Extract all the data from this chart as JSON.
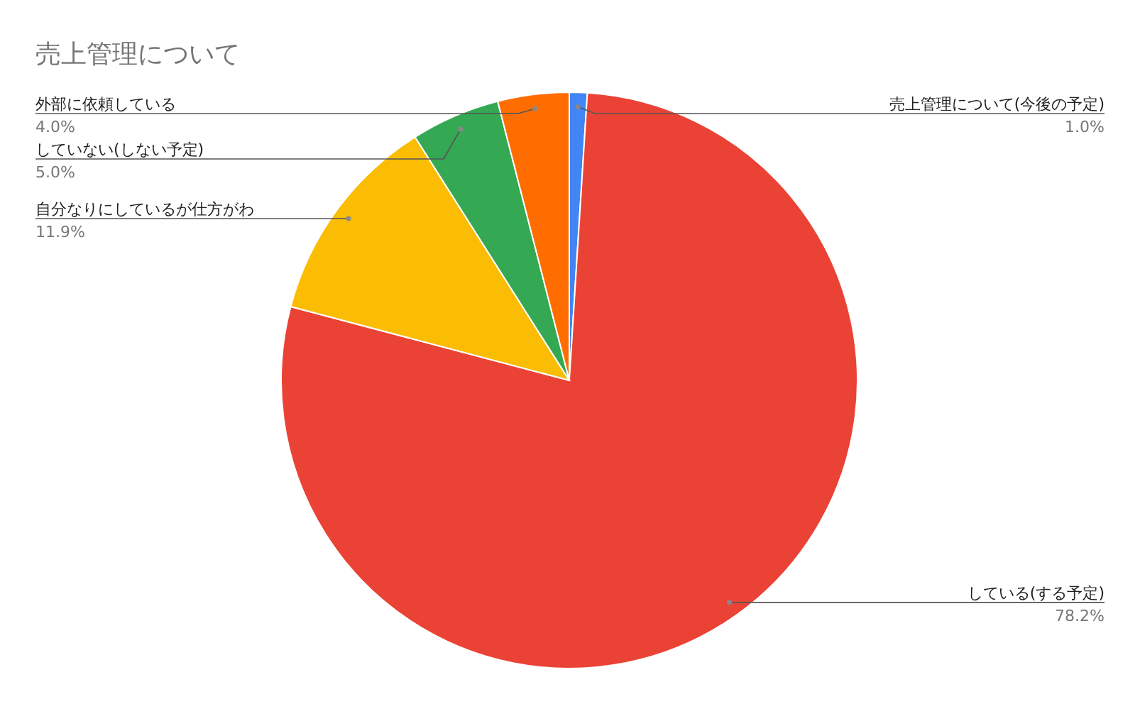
{
  "chart_data": {
    "type": "pie",
    "title": "売上管理について",
    "categories": [
      "売上管理について(今後の予定)",
      "している(する予定)",
      "自分なりにしているが仕方がわ",
      "していない(しない予定)",
      "外部に依頼している"
    ],
    "values": [
      1.0,
      78.2,
      11.9,
      5.0,
      4.0
    ],
    "value_labels": [
      "1.0%",
      "78.2%",
      "11.9%",
      "5.0%",
      "4.0%"
    ],
    "colors": [
      "#4285f4",
      "#ea4335",
      "#fbbc04",
      "#34a853",
      "#ff6d01"
    ]
  }
}
